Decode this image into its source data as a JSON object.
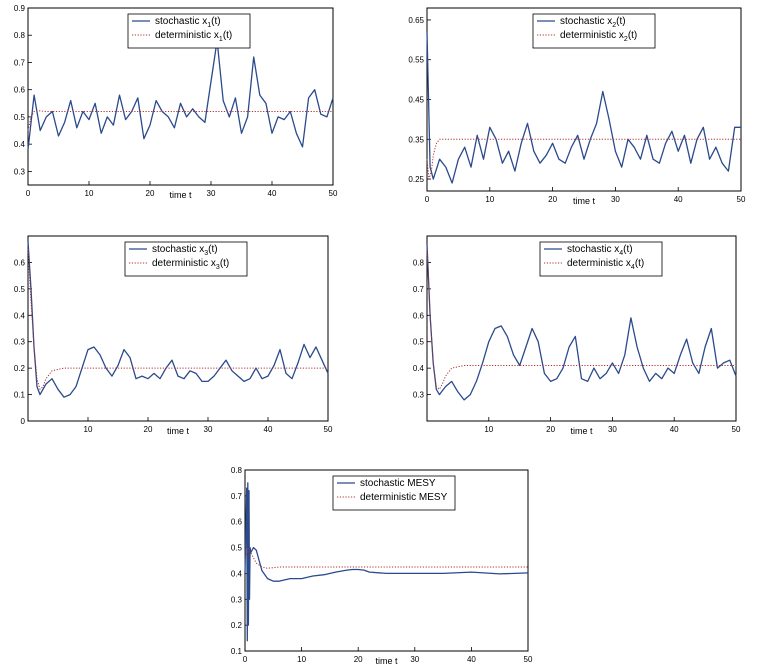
{
  "colors": {
    "stochastic": "#2b4a8c",
    "deterministic": "#b03030",
    "axis": "#000000"
  },
  "chart_data": [
    {
      "type": "line",
      "xlabel": "time t",
      "xlim": [
        0,
        50
      ],
      "ylim": [
        0.25,
        0.9
      ],
      "xticks": [
        0,
        10,
        20,
        30,
        40,
        50
      ],
      "yticks": [
        0.3,
        0.4,
        0.5,
        0.6,
        0.7,
        0.8,
        0.9
      ],
      "legend": [
        {
          "base": "stochastic x",
          "sub": "1",
          "tail": "(t)"
        },
        {
          "base": "deterministic x",
          "sub": "1",
          "tail": "(t)"
        }
      ],
      "series": [
        {
          "name": "stochastic x1(t)",
          "style": "solid",
          "x": [
            0,
            1,
            2,
            3,
            4,
            5,
            6,
            7,
            8,
            9,
            10,
            11,
            12,
            13,
            14,
            15,
            16,
            17,
            18,
            19,
            20,
            21,
            22,
            23,
            24,
            25,
            26,
            27,
            28,
            29,
            30,
            31,
            32,
            33,
            34,
            35,
            36,
            37,
            38,
            39,
            40,
            41,
            42,
            43,
            44,
            45,
            46,
            47,
            48,
            49,
            50
          ],
          "y": [
            0.38,
            0.58,
            0.45,
            0.5,
            0.52,
            0.43,
            0.48,
            0.56,
            0.46,
            0.52,
            0.49,
            0.55,
            0.44,
            0.5,
            0.47,
            0.58,
            0.49,
            0.52,
            0.57,
            0.42,
            0.47,
            0.56,
            0.52,
            0.5,
            0.46,
            0.55,
            0.5,
            0.53,
            0.5,
            0.48,
            0.63,
            0.78,
            0.56,
            0.5,
            0.57,
            0.44,
            0.5,
            0.72,
            0.58,
            0.55,
            0.44,
            0.5,
            0.49,
            0.52,
            0.44,
            0.39,
            0.57,
            0.6,
            0.51,
            0.5,
            0.57
          ]
        },
        {
          "name": "deterministic x1(t)",
          "style": "dotted",
          "x": [
            0,
            0.5,
            1,
            1.5,
            2,
            3,
            5,
            8,
            50
          ],
          "y": [
            0.45,
            0.5,
            0.52,
            0.522,
            0.522,
            0.52,
            0.52,
            0.52,
            0.52
          ]
        }
      ]
    },
    {
      "type": "line",
      "xlabel": "time t",
      "xlim": [
        0,
        50
      ],
      "ylim": [
        0.22,
        0.68
      ],
      "xticks": [
        0,
        10,
        20,
        30,
        40,
        50
      ],
      "yticks": [
        0.25,
        0.35,
        0.45,
        0.55,
        0.65
      ],
      "legend": [
        {
          "base": "stochastic x",
          "sub": "2",
          "tail": "(t)"
        },
        {
          "base": "deterministic x",
          "sub": "2",
          "tail": "(t)"
        }
      ],
      "series": [
        {
          "name": "stochastic x2(t)",
          "style": "solid",
          "x": [
            0,
            0.5,
            1,
            2,
            3,
            4,
            5,
            6,
            7,
            8,
            9,
            10,
            11,
            12,
            13,
            14,
            15,
            16,
            17,
            18,
            19,
            20,
            21,
            22,
            23,
            24,
            25,
            26,
            27,
            28,
            29,
            30,
            31,
            32,
            33,
            34,
            35,
            36,
            37,
            38,
            39,
            40,
            41,
            42,
            43,
            44,
            45,
            46,
            47,
            48,
            49,
            50
          ],
          "y": [
            0.62,
            0.28,
            0.25,
            0.3,
            0.28,
            0.24,
            0.3,
            0.33,
            0.28,
            0.36,
            0.3,
            0.38,
            0.35,
            0.29,
            0.32,
            0.27,
            0.34,
            0.39,
            0.32,
            0.29,
            0.31,
            0.34,
            0.3,
            0.29,
            0.33,
            0.36,
            0.3,
            0.35,
            0.39,
            0.47,
            0.4,
            0.32,
            0.28,
            0.35,
            0.33,
            0.3,
            0.36,
            0.3,
            0.29,
            0.34,
            0.37,
            0.32,
            0.36,
            0.29,
            0.35,
            0.38,
            0.3,
            0.33,
            0.29,
            0.27,
            0.38,
            0.38
          ]
        },
        {
          "name": "deterministic x2(t)",
          "style": "dotted",
          "x": [
            0,
            0.3,
            0.7,
            1,
            1.5,
            2,
            3,
            5,
            50
          ],
          "y": [
            0.3,
            0.25,
            0.27,
            0.31,
            0.34,
            0.35,
            0.35,
            0.35,
            0.35
          ]
        }
      ]
    },
    {
      "type": "line",
      "xlabel": "time t",
      "xlim": [
        0,
        50
      ],
      "ylim": [
        0,
        0.7
      ],
      "xticks": [
        10,
        20,
        30,
        40,
        50
      ],
      "yticks": [
        0,
        0.1,
        0.2,
        0.3,
        0.4,
        0.5,
        0.6
      ],
      "legend": [
        {
          "base": "stochastic x",
          "sub": "3",
          "tail": "(t)"
        },
        {
          "base": "deterministic x",
          "sub": "3",
          "tail": "(t)"
        }
      ],
      "series": [
        {
          "name": "stochastic x3(t)",
          "style": "solid",
          "x": [
            0,
            0.5,
            1,
            1.5,
            2,
            3,
            4,
            5,
            6,
            7,
            8,
            9,
            10,
            11,
            12,
            13,
            14,
            15,
            16,
            17,
            18,
            19,
            20,
            21,
            22,
            23,
            24,
            25,
            26,
            27,
            28,
            29,
            30,
            31,
            32,
            33,
            34,
            35,
            36,
            37,
            38,
            39,
            40,
            41,
            42,
            43,
            44,
            45,
            46,
            47,
            48,
            49,
            50
          ],
          "y": [
            0.68,
            0.5,
            0.28,
            0.13,
            0.1,
            0.14,
            0.16,
            0.12,
            0.09,
            0.1,
            0.13,
            0.2,
            0.27,
            0.28,
            0.25,
            0.2,
            0.17,
            0.21,
            0.27,
            0.24,
            0.16,
            0.17,
            0.16,
            0.18,
            0.16,
            0.2,
            0.23,
            0.17,
            0.16,
            0.19,
            0.18,
            0.15,
            0.15,
            0.17,
            0.2,
            0.23,
            0.19,
            0.17,
            0.15,
            0.16,
            0.2,
            0.16,
            0.17,
            0.21,
            0.27,
            0.18,
            0.16,
            0.22,
            0.29,
            0.24,
            0.28,
            0.23,
            0.18
          ]
        },
        {
          "name": "deterministic x3(t)",
          "style": "dotted",
          "x": [
            0,
            0.5,
            1,
            1.5,
            2,
            2.5,
            3,
            4,
            6,
            50
          ],
          "y": [
            0.65,
            0.45,
            0.28,
            0.16,
            0.12,
            0.13,
            0.16,
            0.19,
            0.2,
            0.2
          ]
        }
      ]
    },
    {
      "type": "line",
      "xlabel": "time t",
      "xlim": [
        0,
        50
      ],
      "ylim": [
        0.2,
        0.9
      ],
      "xticks": [
        10,
        20,
        30,
        40,
        50
      ],
      "yticks": [
        0.3,
        0.4,
        0.5,
        0.6,
        0.7,
        0.8
      ],
      "legend": [
        {
          "base": "stochastic x",
          "sub": "4",
          "tail": "(t)"
        },
        {
          "base": "deterministic x",
          "sub": "4",
          "tail": "(t)"
        }
      ],
      "series": [
        {
          "name": "stochastic x4(t)",
          "style": "solid",
          "x": [
            0,
            0.5,
            1,
            1.5,
            2,
            3,
            4,
            5,
            6,
            7,
            8,
            9,
            10,
            11,
            12,
            13,
            14,
            15,
            16,
            17,
            18,
            19,
            20,
            21,
            22,
            23,
            24,
            25,
            26,
            27,
            28,
            29,
            30,
            31,
            32,
            33,
            34,
            35,
            36,
            37,
            38,
            39,
            40,
            41,
            42,
            43,
            44,
            45,
            46,
            47,
            48,
            49,
            50
          ],
          "y": [
            0.87,
            0.6,
            0.42,
            0.32,
            0.3,
            0.33,
            0.35,
            0.31,
            0.28,
            0.3,
            0.35,
            0.42,
            0.5,
            0.55,
            0.56,
            0.52,
            0.45,
            0.41,
            0.48,
            0.55,
            0.5,
            0.38,
            0.35,
            0.36,
            0.4,
            0.48,
            0.52,
            0.36,
            0.35,
            0.4,
            0.36,
            0.38,
            0.42,
            0.38,
            0.45,
            0.59,
            0.48,
            0.4,
            0.35,
            0.38,
            0.36,
            0.4,
            0.38,
            0.45,
            0.51,
            0.42,
            0.38,
            0.48,
            0.55,
            0.4,
            0.42,
            0.43,
            0.37
          ]
        },
        {
          "name": "deterministic x4(t)",
          "style": "dotted",
          "x": [
            0,
            0.5,
            1,
            1.5,
            2,
            2.5,
            3,
            4,
            6,
            50
          ],
          "y": [
            0.85,
            0.6,
            0.42,
            0.33,
            0.32,
            0.34,
            0.37,
            0.4,
            0.41,
            0.41
          ]
        }
      ]
    },
    {
      "type": "line",
      "xlabel": "time t",
      "xlim": [
        0,
        50
      ],
      "ylim": [
        0.1,
        0.8
      ],
      "xticks": [
        0,
        10,
        20,
        30,
        40,
        50
      ],
      "yticks": [
        0.1,
        0.2,
        0.3,
        0.4,
        0.5,
        0.6,
        0.7,
        0.8
      ],
      "legend": [
        {
          "base": "stochastic MESY",
          "sub": "",
          "tail": ""
        },
        {
          "base": "deterministic MESY",
          "sub": "",
          "tail": ""
        }
      ],
      "series": [
        {
          "name": "stochastic MESY",
          "style": "solid",
          "x": [
            0,
            0.3,
            0.4,
            0.5,
            0.6,
            0.7,
            0.8,
            0.9,
            1,
            1.5,
            2,
            2.5,
            3,
            4,
            5,
            6,
            7,
            8,
            10,
            12,
            14,
            16,
            18,
            19,
            20,
            21,
            22,
            25,
            28,
            30,
            35,
            40,
            45,
            50
          ],
          "y": [
            0.4,
            0.73,
            0.14,
            0.75,
            0.2,
            0.72,
            0.3,
            0.5,
            0.48,
            0.5,
            0.49,
            0.45,
            0.41,
            0.38,
            0.37,
            0.37,
            0.375,
            0.38,
            0.38,
            0.39,
            0.395,
            0.405,
            0.413,
            0.415,
            0.415,
            0.413,
            0.405,
            0.4,
            0.4,
            0.4,
            0.4,
            0.405,
            0.398,
            0.402
          ]
        },
        {
          "name": "deterministic MESY",
          "style": "dotted",
          "x": [
            0,
            0.5,
            1,
            1.5,
            2,
            3,
            4,
            6,
            10,
            50
          ],
          "y": [
            0.45,
            0.5,
            0.48,
            0.46,
            0.44,
            0.425,
            0.42,
            0.425,
            0.425,
            0.425
          ]
        }
      ]
    }
  ]
}
